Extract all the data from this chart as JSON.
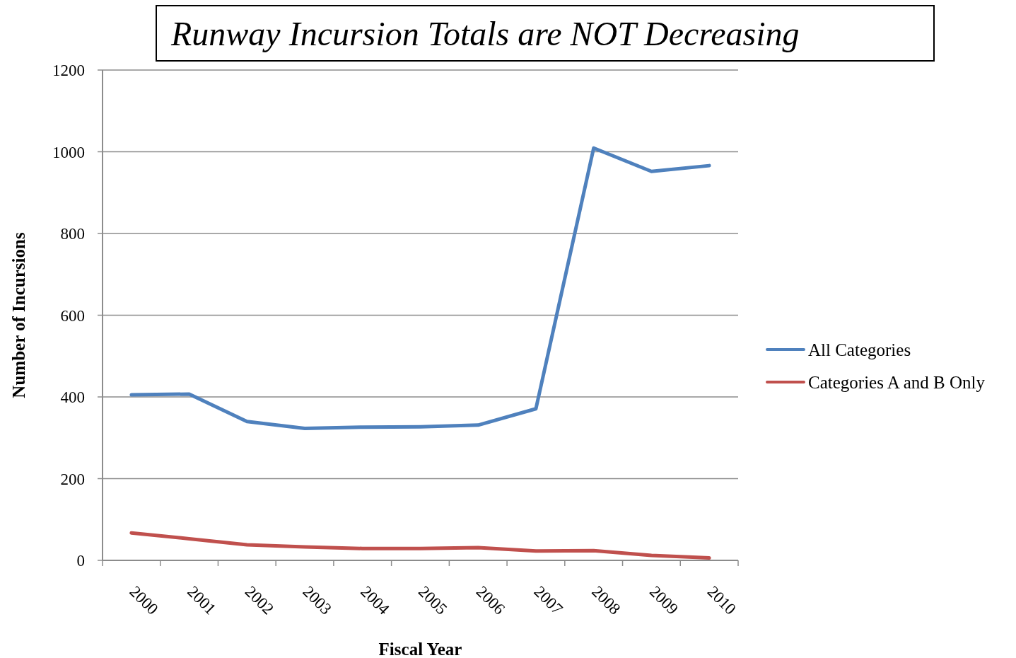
{
  "chart_data": {
    "type": "line",
    "title": "Runway Incursion Totals are NOT Decreasing",
    "xlabel": "Fiscal Year",
    "ylabel": "Number of Incursions",
    "categories": [
      "2000",
      "2001",
      "2002",
      "2003",
      "2004",
      "2005",
      "2006",
      "2007",
      "2008",
      "2009",
      "2010"
    ],
    "series": [
      {
        "name": "All Categories",
        "color": "#4f81bd",
        "values": [
          405,
          407,
          340,
          323,
          326,
          327,
          331,
          371,
          1009,
          952,
          966
        ]
      },
      {
        "name": "Categories A and B Only",
        "color": "#c0504d",
        "values": [
          67,
          53,
          38,
          33,
          29,
          29,
          31,
          23,
          24,
          12,
          6
        ]
      }
    ],
    "ylim": [
      0,
      1200
    ],
    "yticks": [
      0,
      200,
      400,
      600,
      800,
      1000,
      1200
    ],
    "grid": "y",
    "legend": "right"
  }
}
